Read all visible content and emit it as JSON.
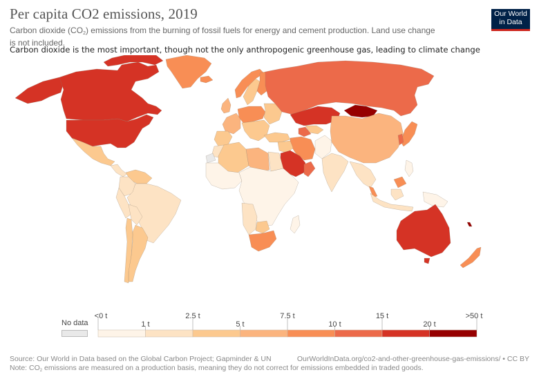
{
  "header": {
    "title": "Per capita CO2 emissions, 2019",
    "subtitle_pre": "Carbon dioxide (CO",
    "subtitle_sub": "2",
    "subtitle_post": ") emissions from the burning of fossil fuels for energy and cement production. Land use change is not included.",
    "subtitle2": "Carbon dioxide is the most important, though not the only anthropogenic greenhouse gas, leading to climate change"
  },
  "logo": {
    "line1": "Our World",
    "line2": "in Data"
  },
  "colors": {
    "no_data": "#e9e9e9",
    "bins": [
      "#fef4e8",
      "#fde3c4",
      "#fcc98f",
      "#fbb47e",
      "#f88e55",
      "#ec6a4a",
      "#d53325",
      "#960000"
    ],
    "border": "#8a7a6a",
    "logo_bg": "#002147",
    "logo_accent": "#ce261e"
  },
  "chart_data": {
    "type": "choropleth",
    "title": "Per capita CO2 emissions, 2019",
    "unit": "t",
    "legend": {
      "no_data_label": "No data",
      "bins": [
        {
          "min_label": "<0 t",
          "max_label": "1 t",
          "min": 0,
          "max": 1
        },
        {
          "min_label": "1 t",
          "max_label": "2.5 t",
          "min": 1,
          "max": 2.5
        },
        {
          "min_label": "2.5 t",
          "max_label": "5 t",
          "min": 2.5,
          "max": 5
        },
        {
          "min_label": "5 t",
          "max_label": "7.5 t",
          "min": 5,
          "max": 7.5
        },
        {
          "min_label": "7.5 t",
          "max_label": "10 t",
          "min": 7.5,
          "max": 10
        },
        {
          "min_label": "10 t",
          "max_label": "15 t",
          "min": 10,
          "max": 15
        },
        {
          "min_label": "15 t",
          "max_label": "20 t",
          "min": 15,
          "max": 20
        },
        {
          "min_label": "20 t",
          "max_label": ">50 t",
          "min": 20,
          "max": 50
        }
      ],
      "tick_labels": [
        "<0 t",
        "1 t",
        "2.5 t",
        "5 t",
        "7.5 t",
        "10 t",
        "15 t",
        "20 t",
        ">50 t"
      ]
    },
    "regions": [
      {
        "name": "Canada",
        "bin": 6
      },
      {
        "name": "United States",
        "bin": 6
      },
      {
        "name": "Alaska",
        "bin": 6
      },
      {
        "name": "Greenland",
        "bin": 4
      },
      {
        "name": "Mexico",
        "bin": 2
      },
      {
        "name": "Central America",
        "bin": 1
      },
      {
        "name": "Venezuela",
        "bin": 2
      },
      {
        "name": "Colombia",
        "bin": 1
      },
      {
        "name": "Brazil",
        "bin": 1
      },
      {
        "name": "Peru",
        "bin": 1
      },
      {
        "name": "Bolivia",
        "bin": 1
      },
      {
        "name": "Argentina",
        "bin": 2
      },
      {
        "name": "Chile",
        "bin": 2
      },
      {
        "name": "Iceland",
        "bin": 4
      },
      {
        "name": "Norway",
        "bin": 4
      },
      {
        "name": "Sweden",
        "bin": 2
      },
      {
        "name": "Finland",
        "bin": 4
      },
      {
        "name": "United Kingdom",
        "bin": 3
      },
      {
        "name": "Western Europe",
        "bin": 3
      },
      {
        "name": "Germany/Poland/Czechia",
        "bin": 4
      },
      {
        "name": "Spain/Portugal",
        "bin": 2
      },
      {
        "name": "Southeast Europe",
        "bin": 2
      },
      {
        "name": "Ukraine/Belarus",
        "bin": 2
      },
      {
        "name": "Turkey",
        "bin": 2
      },
      {
        "name": "Russia",
        "bin": 5
      },
      {
        "name": "Kazakhstan",
        "bin": 6
      },
      {
        "name": "Mongolia",
        "bin": 7
      },
      {
        "name": "Uzbekistan",
        "bin": 2
      },
      {
        "name": "Turkmenistan",
        "bin": 5
      },
      {
        "name": "Iran",
        "bin": 4
      },
      {
        "name": "Iraq/Syria",
        "bin": 2
      },
      {
        "name": "Saudi Arabia",
        "bin": 6
      },
      {
        "name": "Oman/UAE",
        "bin": 5
      },
      {
        "name": "Afghanistan/Pakistan",
        "bin": 0
      },
      {
        "name": "China",
        "bin": 3
      },
      {
        "name": "India",
        "bin": 1
      },
      {
        "name": "Japan",
        "bin": 4
      },
      {
        "name": "South Korea",
        "bin": 5
      },
      {
        "name": "Southeast Asia mainland",
        "bin": 1
      },
      {
        "name": "Malaysia",
        "bin": 4
      },
      {
        "name": "Indonesia",
        "bin": 1
      },
      {
        "name": "Papua New Guinea",
        "bin": 0
      },
      {
        "name": "Philippines",
        "bin": 0
      },
      {
        "name": "Australia",
        "bin": 6
      },
      {
        "name": "New Zealand",
        "bin": 4
      },
      {
        "name": "New Caledonia",
        "bin": 7
      },
      {
        "name": "North Africa (Algeria)",
        "bin": 2
      },
      {
        "name": "Libya",
        "bin": 3
      },
      {
        "name": "Egypt",
        "bin": 1
      },
      {
        "name": "Morocco",
        "bin": 1
      },
      {
        "name": "Western Sahara",
        "bin": -1
      },
      {
        "name": "West Africa",
        "bin": 0
      },
      {
        "name": "Central/East Africa",
        "bin": 0
      },
      {
        "name": "Angola/Namibia",
        "bin": 1
      },
      {
        "name": "Botswana",
        "bin": 2
      },
      {
        "name": "South Africa",
        "bin": 4
      },
      {
        "name": "Madagascar",
        "bin": 0
      }
    ]
  },
  "footer": {
    "source": "Source: Our World in Data based on the Global Carbon Project; Gapminder & UN",
    "note_pre": "Note: CO",
    "note_sub": "2",
    "note_post": " emissions are measured on a production basis, meaning they do not correct for emissions embedded in traded goods.",
    "url": "OurWorldInData.org/co2-and-other-greenhouse-gas-emissions/ • CC BY"
  }
}
